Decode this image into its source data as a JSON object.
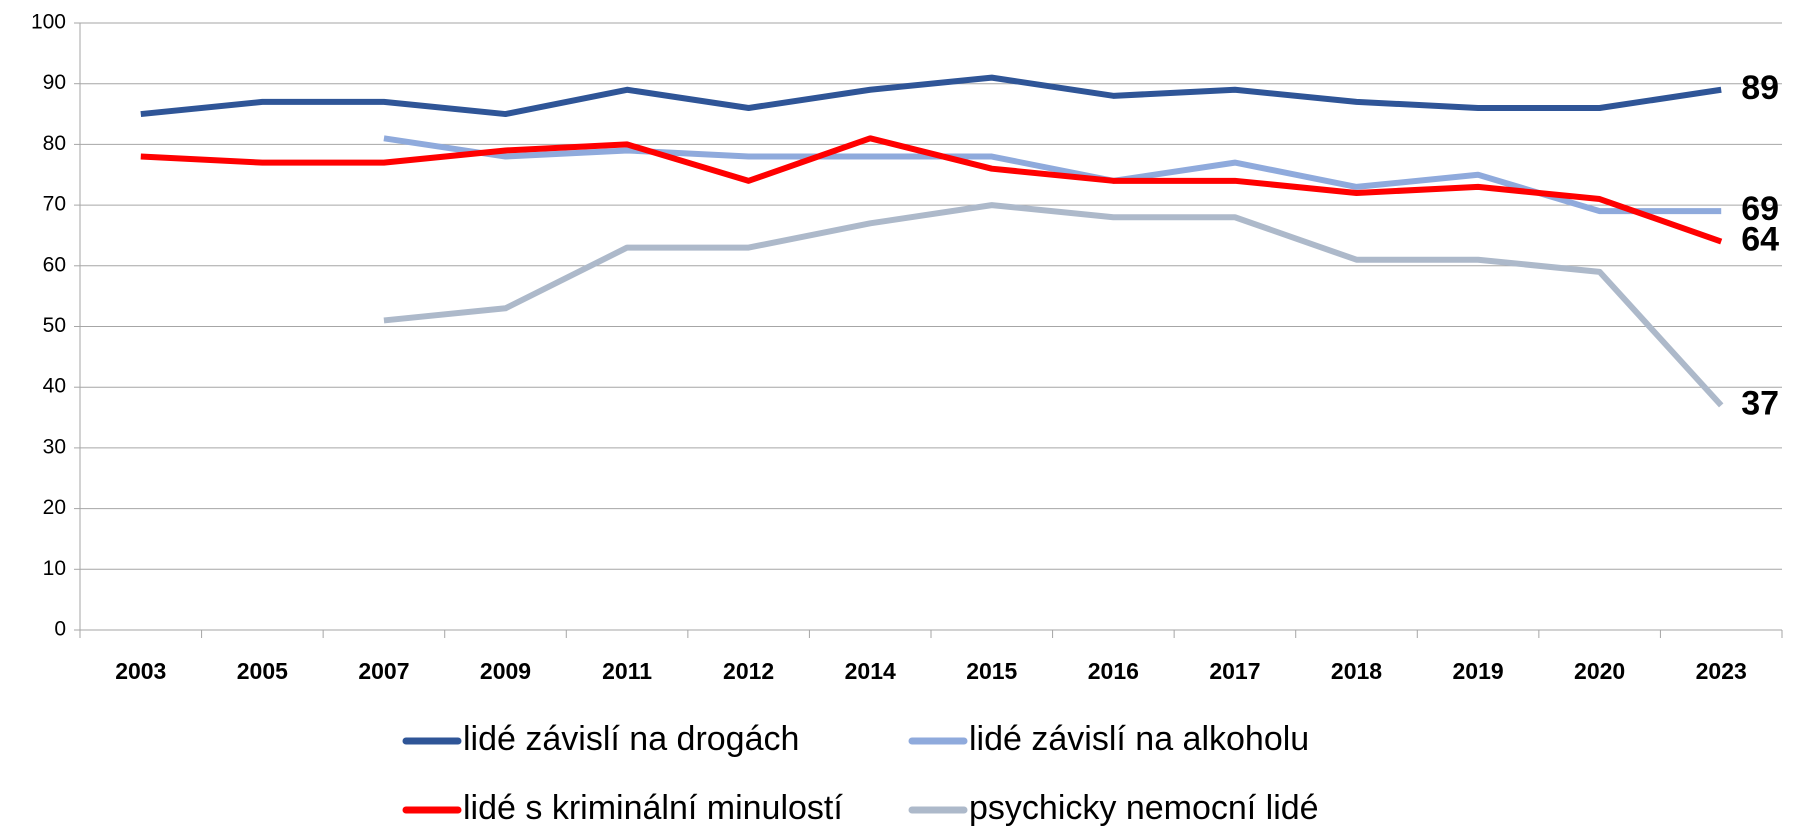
{
  "chart_data": {
    "type": "line",
    "categories": [
      "2003",
      "2005",
      "2007",
      "2009",
      "2011",
      "2012",
      "2014",
      "2015",
      "2016",
      "2017",
      "2018",
      "2019",
      "2020",
      "2023"
    ],
    "series": [
      {
        "name": "lidé závislí na drogách",
        "color": "#2f5597",
        "values": [
          85,
          87,
          87,
          85,
          89,
          86,
          89,
          91,
          88,
          89,
          87,
          86,
          86,
          89
        ]
      },
      {
        "name": "lidé závislí na alkoholu",
        "color": "#8faadc",
        "values": [
          null,
          null,
          81,
          78,
          79,
          78,
          78,
          78,
          74,
          77,
          73,
          75,
          69,
          69
        ]
      },
      {
        "name": "lidé s kriminální minulostí",
        "color": "#ff0000",
        "values": [
          78,
          77,
          77,
          79,
          80,
          74,
          81,
          76,
          74,
          74,
          72,
          73,
          71,
          64
        ]
      },
      {
        "name": "psychicky nemocní lidé",
        "color": "#adb9ca",
        "values": [
          null,
          null,
          51,
          53,
          63,
          63,
          67,
          70,
          68,
          68,
          61,
          61,
          59,
          37
        ]
      }
    ],
    "ylim": [
      0,
      100
    ],
    "yticks": [
      0,
      10,
      20,
      30,
      40,
      50,
      60,
      70,
      80,
      90,
      100
    ],
    "grid": true
  }
}
